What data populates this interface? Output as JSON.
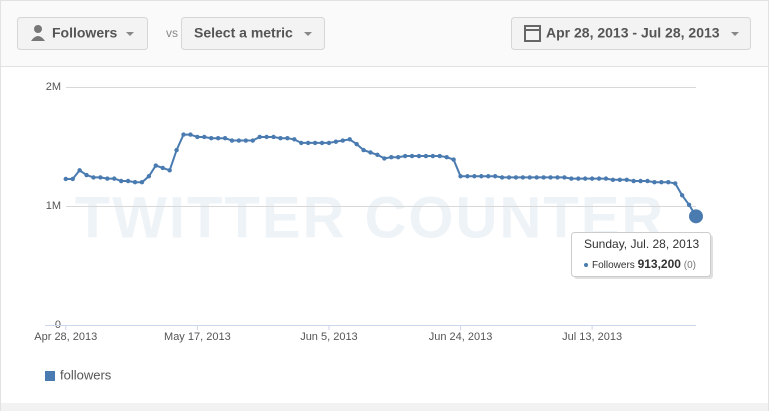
{
  "toolbar": {
    "metric": "Followers",
    "vs": "vs",
    "second_metric": "Select a metric",
    "date_range": "Apr 28, 2013 - Jul 28, 2013"
  },
  "chart_data": {
    "type": "line",
    "watermark": "TWITTER COUNTER",
    "x": [
      "2013-04-28",
      "2013-04-29",
      "2013-04-30",
      "2013-05-01",
      "2013-05-02",
      "2013-05-03",
      "2013-05-04",
      "2013-05-05",
      "2013-05-06",
      "2013-05-07",
      "2013-05-08",
      "2013-05-09",
      "2013-05-10",
      "2013-05-11",
      "2013-05-12",
      "2013-05-13",
      "2013-05-14",
      "2013-05-15",
      "2013-05-16",
      "2013-05-17",
      "2013-05-18",
      "2013-05-19",
      "2013-05-20",
      "2013-05-21",
      "2013-05-22",
      "2013-05-23",
      "2013-05-24",
      "2013-05-25",
      "2013-05-26",
      "2013-05-27",
      "2013-05-28",
      "2013-05-29",
      "2013-05-30",
      "2013-05-31",
      "2013-06-01",
      "2013-06-02",
      "2013-06-03",
      "2013-06-04",
      "2013-06-05",
      "2013-06-06",
      "2013-06-07",
      "2013-06-08",
      "2013-06-09",
      "2013-06-10",
      "2013-06-11",
      "2013-06-12",
      "2013-06-13",
      "2013-06-14",
      "2013-06-15",
      "2013-06-16",
      "2013-06-17",
      "2013-06-18",
      "2013-06-19",
      "2013-06-20",
      "2013-06-21",
      "2013-06-22",
      "2013-06-23",
      "2013-06-24",
      "2013-06-25",
      "2013-06-26",
      "2013-06-27",
      "2013-06-28",
      "2013-06-29",
      "2013-06-30",
      "2013-07-01",
      "2013-07-02",
      "2013-07-03",
      "2013-07-04",
      "2013-07-05",
      "2013-07-06",
      "2013-07-07",
      "2013-07-08",
      "2013-07-09",
      "2013-07-10",
      "2013-07-11",
      "2013-07-12",
      "2013-07-13",
      "2013-07-14",
      "2013-07-15",
      "2013-07-16",
      "2013-07-17",
      "2013-07-18",
      "2013-07-19",
      "2013-07-20",
      "2013-07-21",
      "2013-07-22",
      "2013-07-23",
      "2013-07-24",
      "2013-07-25",
      "2013-07-26",
      "2013-07-27",
      "2013-07-28"
    ],
    "series": [
      {
        "name": "followers",
        "color": "#4a7bb0",
        "values": [
          1227000,
          1227000,
          1300000,
          1260000,
          1240000,
          1240000,
          1230000,
          1230000,
          1210000,
          1210000,
          1200000,
          1200000,
          1250000,
          1340000,
          1320000,
          1300000,
          1470000,
          1600000,
          1600000,
          1580000,
          1580000,
          1570000,
          1570000,
          1570000,
          1550000,
          1550000,
          1550000,
          1550000,
          1580000,
          1580000,
          1580000,
          1570000,
          1570000,
          1560000,
          1530000,
          1530000,
          1530000,
          1530000,
          1530000,
          1540000,
          1550000,
          1560000,
          1520000,
          1470000,
          1450000,
          1430000,
          1400000,
          1410000,
          1410000,
          1420000,
          1420000,
          1420000,
          1420000,
          1420000,
          1420000,
          1410000,
          1390000,
          1250000,
          1250000,
          1250000,
          1250000,
          1250000,
          1250000,
          1240000,
          1240000,
          1240000,
          1240000,
          1240000,
          1240000,
          1240000,
          1240000,
          1240000,
          1240000,
          1230000,
          1230000,
          1230000,
          1230000,
          1230000,
          1230000,
          1220000,
          1220000,
          1220000,
          1210000,
          1210000,
          1210000,
          1200000,
          1200000,
          1200000,
          1190000,
          1090000,
          1010000,
          913200
        ]
      }
    ],
    "xlim": [
      "2013-04-25",
      "2013-07-28"
    ],
    "xticks": [
      {
        "value": "2013-04-28",
        "label": "Apr 28, 2013"
      },
      {
        "value": "2013-05-17",
        "label": "May 17, 2013"
      },
      {
        "value": "2013-06-05",
        "label": "Jun 5, 2013"
      },
      {
        "value": "2013-06-24",
        "label": "Jun 24, 2013"
      },
      {
        "value": "2013-07-13",
        "label": "Jul 13, 2013"
      }
    ],
    "ylim": [
      0,
      2000000
    ],
    "yticks": [
      0,
      {
        "value": 1000000,
        "label": "1M"
      },
      {
        "value": 2000000,
        "label": "2M"
      }
    ],
    "grid": true,
    "legend": "bottom-left",
    "tooltip": {
      "title": "Sunday, Jul. 28, 2013",
      "series": "Followers",
      "value": "913,200",
      "change": "(0)"
    }
  }
}
